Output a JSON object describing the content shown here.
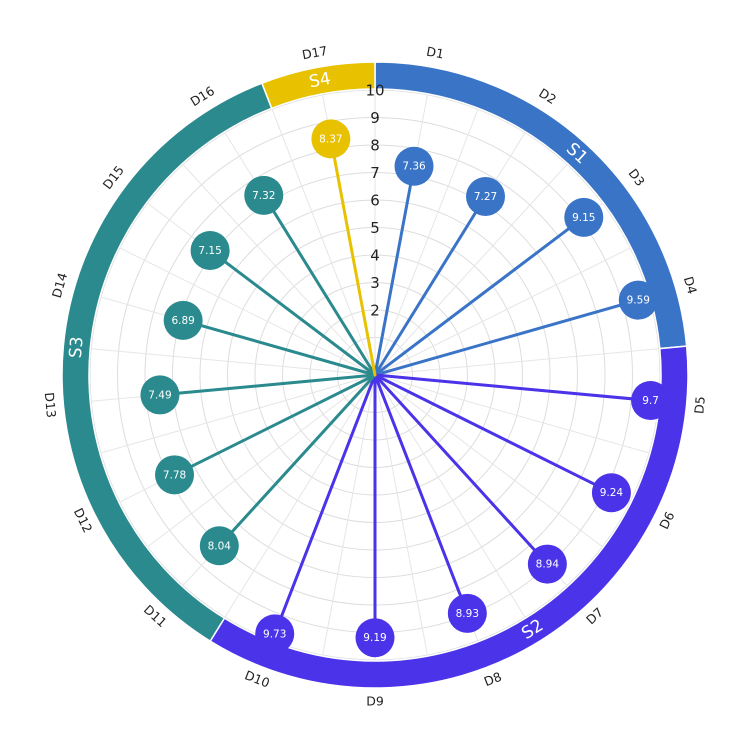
{
  "chart_data": {
    "type": "radial-lollipop",
    "title": "",
    "rlim": [
      0,
      10
    ],
    "radial_ticks": [
      "2",
      "3",
      "4",
      "5",
      "6",
      "7",
      "8",
      "9",
      "10"
    ],
    "categories": [
      "D1",
      "D2",
      "D3",
      "D4",
      "D5",
      "D6",
      "D7",
      "D8",
      "D9",
      "D10",
      "D11",
      "D12",
      "D13",
      "D14",
      "D15",
      "D16",
      "D17"
    ],
    "values": [
      7.36,
      7.27,
      9.15,
      9.59,
      9.7,
      9.24,
      8.94,
      8.93,
      9.19,
      9.73,
      8.04,
      7.78,
      7.49,
      6.89,
      7.15,
      7.32,
      8.37
    ],
    "value_labels": [
      "7.36",
      "7.27",
      "9.15",
      "9.59",
      "9.7",
      "9.24",
      "8.94",
      "8.93",
      "9.19",
      "9.73",
      "8.04",
      "7.78",
      "7.49",
      "6.89",
      "7.15",
      "7.32",
      "8.37"
    ],
    "groups": [
      {
        "name": "S1",
        "color": "#3a74c7",
        "start": 0,
        "end": 4
      },
      {
        "name": "S2",
        "color": "#4a33e8",
        "start": 4,
        "end": 10
      },
      {
        "name": "S3",
        "color": "#2a8a8e",
        "start": 10,
        "end": 16
      },
      {
        "name": "S4",
        "color": "#e8c200",
        "start": 16,
        "end": 17
      }
    ],
    "point_group": [
      0,
      0,
      0,
      0,
      1,
      1,
      1,
      1,
      1,
      1,
      2,
      2,
      2,
      2,
      2,
      2,
      3
    ],
    "grid": true
  }
}
